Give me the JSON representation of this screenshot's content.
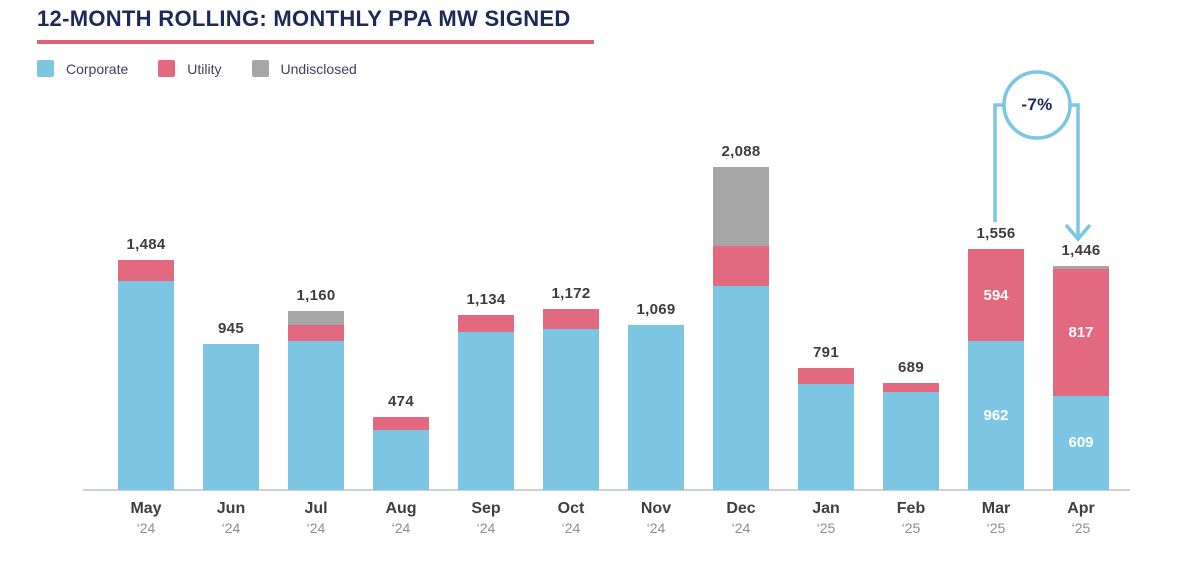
{
  "header": {
    "title": "12-MONTH ROLLING: MONTHLY PPA MW SIGNED"
  },
  "chart_data": {
    "type": "bar",
    "stacked": true,
    "title": "12-MONTH ROLLING: MONTHLY PPA MW SIGNED",
    "unit": "MW",
    "grid": false,
    "legend_position": "top-left",
    "ylim": [
      0,
      2100
    ],
    "categories": [
      {
        "label": "May ‘24",
        "month": "May",
        "year": "‘24"
      },
      {
        "label": "Jun ‘24",
        "month": "Jun",
        "year": "‘24"
      },
      {
        "label": "Jul ‘24",
        "month": "Jul",
        "year": "‘24"
      },
      {
        "label": "Aug ‘24",
        "month": "Aug",
        "year": "‘24"
      },
      {
        "label": "Sep ‘24",
        "month": "Sep",
        "year": "‘24"
      },
      {
        "label": "Oct ‘24",
        "month": "Oct",
        "year": "‘24"
      },
      {
        "label": "Nov ‘24",
        "month": "Nov",
        "year": "‘24"
      },
      {
        "label": "Dec ‘24",
        "month": "Dec",
        "year": "‘24"
      },
      {
        "label": "Jan ‘25",
        "month": "Jan",
        "year": "‘25"
      },
      {
        "label": "Feb ‘25",
        "month": "Feb",
        "year": "‘25"
      },
      {
        "label": "Mar ‘25",
        "month": "Mar",
        "year": "‘25"
      },
      {
        "label": "Apr ‘25",
        "month": "Apr",
        "year": "‘25"
      }
    ],
    "series": [
      {
        "name": "Corporate",
        "color": "#7cc5e3",
        "values": [
          1348,
          945,
          960,
          389,
          1019,
          1042,
          1069,
          1320,
          688,
          634,
          962,
          609
        ]
      },
      {
        "name": "Utility",
        "color": "#e2697f",
        "values": [
          136,
          0,
          105,
          85,
          115,
          130,
          0,
          255,
          103,
          55,
          594,
          817
        ]
      },
      {
        "name": "Undisclosed",
        "color": "#a6a6a6",
        "values": [
          0,
          0,
          95,
          0,
          0,
          0,
          0,
          513,
          0,
          0,
          0,
          20
        ]
      }
    ],
    "totals": [
      1484,
      945,
      1160,
      474,
      1134,
      1172,
      1069,
      2088,
      791,
      689,
      1556,
      1446
    ],
    "total_labels": [
      "1,484",
      "945",
      "1,160",
      "474",
      "1,134",
      "1,172",
      "1,069",
      "2,088",
      "791",
      "689",
      "1,556",
      "1,446"
    ],
    "segment_labels": [
      null,
      null,
      null,
      null,
      null,
      null,
      null,
      null,
      null,
      null,
      [
        "962",
        "594",
        null
      ],
      [
        "609",
        "817",
        null
      ]
    ],
    "annotation": {
      "label": "-7%",
      "from": "Mar ‘25",
      "to": "Apr ‘25",
      "arrow_color": "#7cc5e3",
      "text_color": "#1b2a5a"
    }
  },
  "colors": {
    "title": "#1b2a5a",
    "title_underline": "#e0607a",
    "axis_line": "#ccd2d9",
    "value_label": "#3d3d3d",
    "month_label": "#3f3f3f",
    "year_label": "#8e8e8e",
    "segment_label_text": "#ffffff"
  }
}
